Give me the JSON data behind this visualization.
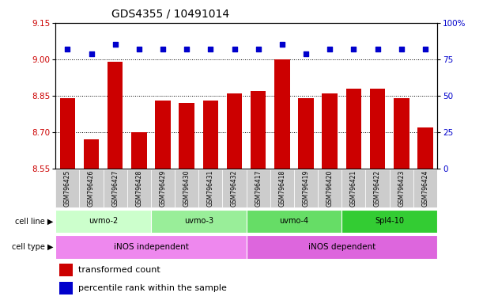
{
  "title": "GDS4355 / 10491014",
  "samples": [
    "GSM796425",
    "GSM796426",
    "GSM796427",
    "GSM796428",
    "GSM796429",
    "GSM796430",
    "GSM796431",
    "GSM796432",
    "GSM796417",
    "GSM796418",
    "GSM796419",
    "GSM796420",
    "GSM796421",
    "GSM796422",
    "GSM796423",
    "GSM796424"
  ],
  "transformed_count": [
    8.84,
    8.67,
    8.99,
    8.7,
    8.83,
    8.82,
    8.83,
    8.86,
    8.87,
    9.0,
    8.84,
    8.86,
    8.88,
    8.88,
    8.84,
    8.72
  ],
  "percentile_rank": [
    82,
    79,
    85,
    82,
    82,
    82,
    82,
    82,
    82,
    85,
    79,
    82,
    82,
    82,
    82,
    82
  ],
  "ylim_left": [
    8.55,
    9.15
  ],
  "ylim_right": [
    0,
    100
  ],
  "yticks_left": [
    8.55,
    8.7,
    8.85,
    9.0,
    9.15
  ],
  "yticks_right": [
    0,
    25,
    50,
    75,
    100
  ],
  "bar_color": "#cc0000",
  "dot_color": "#0000cc",
  "cell_lines": [
    {
      "label": "uvmo-2",
      "start": 0,
      "end": 3,
      "color": "#ccffcc"
    },
    {
      "label": "uvmo-3",
      "start": 4,
      "end": 7,
      "color": "#99ee99"
    },
    {
      "label": "uvmo-4",
      "start": 8,
      "end": 11,
      "color": "#66dd66"
    },
    {
      "label": "Spl4-10",
      "start": 12,
      "end": 15,
      "color": "#33cc33"
    }
  ],
  "cell_types": [
    {
      "label": "iNOS independent",
      "start": 0,
      "end": 7,
      "color": "#ee88ee"
    },
    {
      "label": "iNOS dependent",
      "start": 8,
      "end": 15,
      "color": "#dd66dd"
    }
  ],
  "bar_color_hex": "#cc0000",
  "dot_color_hex": "#0000cc",
  "xlabel_color": "#cc0000",
  "ylabel_right_color": "#0000cc",
  "grid_color": "black",
  "bg_color": "#ffffff",
  "xtick_area_color": "#cccccc",
  "title_fontsize": 10,
  "tick_fontsize": 7.5,
  "sample_fontsize": 5.5,
  "annotation_fontsize": 7,
  "legend_fontsize": 8
}
